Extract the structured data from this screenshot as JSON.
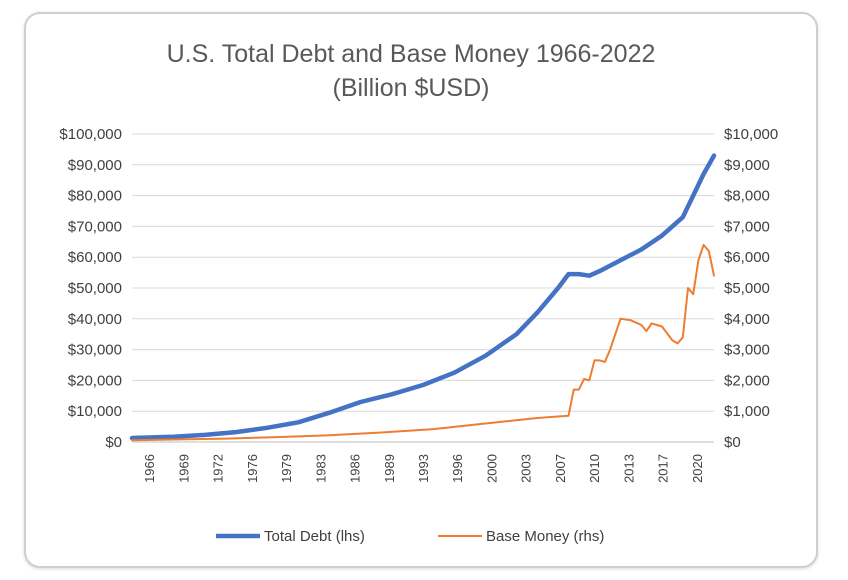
{
  "chart_data": {
    "type": "line",
    "title": "U.S. Total Debt and Base Money 1966-2022",
    "subtitle": "(Billion $USD)",
    "x_range": [
      1966,
      2022
    ],
    "x_tick_labels": [
      "1966",
      "1969",
      "1972",
      "1976",
      "1979",
      "1983",
      "1986",
      "1989",
      "1993",
      "1996",
      "2000",
      "2003",
      "2007",
      "2010",
      "2013",
      "2017",
      "2020"
    ],
    "y_left": {
      "range": [
        0,
        100000
      ],
      "tick_labels": [
        "$0",
        "$10,000",
        "$20,000",
        "$30,000",
        "$40,000",
        "$50,000",
        "$60,000",
        "$70,000",
        "$80,000",
        "$90,000",
        "$100,000"
      ]
    },
    "y_right": {
      "range": [
        0,
        10000
      ],
      "tick_labels": [
        "$0",
        "$1,000",
        "$2,000",
        "$3,000",
        "$4,000",
        "$5,000",
        "$6,000",
        "$7,000",
        "$8,000",
        "$9,000",
        "$10,000"
      ]
    },
    "grid": true,
    "legend_position": "bottom",
    "series": [
      {
        "name": "Total Debt (lhs)",
        "axis": "left",
        "color": "#4472C4",
        "x": [
          1966,
          1970,
          1973,
          1976,
          1979,
          1982,
          1985,
          1988,
          1991,
          1994,
          1997,
          2000,
          2003,
          2005,
          2007,
          2008,
          2009,
          2010,
          2011,
          2013,
          2015,
          2017,
          2019,
          2020,
          2021,
          2022
        ],
        "y": [
          1300,
          1700,
          2300,
          3200,
          4600,
          6400,
          9500,
          13000,
          15500,
          18500,
          22500,
          28000,
          35000,
          42000,
          50000,
          54500,
          54500,
          54000,
          55500,
          59000,
          62500,
          67000,
          73000,
          80000,
          87000,
          93000
        ]
      },
      {
        "name": "Base Money (rhs)",
        "axis": "right",
        "color": "#ED7D31",
        "x": [
          1966,
          1970,
          1975,
          1980,
          1985,
          1990,
          1995,
          2000,
          2005,
          2008,
          2008.5,
          2009,
          2009.5,
          2010,
          2010.5,
          2011,
          2011.5,
          2012,
          2012.5,
          2013,
          2014,
          2015,
          2015.5,
          2016,
          2016.5,
          2017,
          2018,
          2018.5,
          2019,
          2019.5,
          2020,
          2020.5,
          2021,
          2021.5,
          2022
        ],
        "y": [
          60,
          80,
          110,
          160,
          220,
          310,
          420,
          600,
          780,
          850,
          1700,
          1700,
          2050,
          2000,
          2650,
          2650,
          2600,
          3000,
          3500,
          4000,
          3950,
          3800,
          3600,
          3850,
          3800,
          3750,
          3300,
          3200,
          3400,
          5000,
          4800,
          5900,
          6400,
          6200,
          5400
        ]
      }
    ]
  }
}
